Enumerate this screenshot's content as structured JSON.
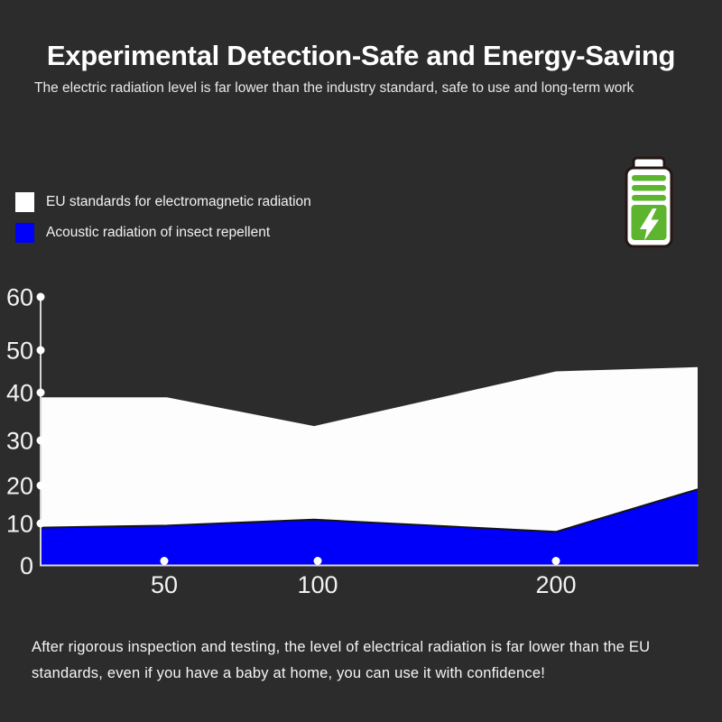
{
  "page": {
    "background": "#2c2c2c"
  },
  "header": {
    "title": "Experimental Detection-Safe and Energy-Saving",
    "subtitle": "The electric radiation level is far lower than the industry standard, safe to use and long-term work"
  },
  "legend": {
    "items": [
      {
        "label": "EU standards for electromagnetic radiation",
        "color": "#ffffff"
      },
      {
        "label": "Acoustic radiation of insect repellent",
        "color": "#0000fa"
      }
    ]
  },
  "battery_icon": {
    "name": "battery-charging-icon",
    "green": "#5cb42f"
  },
  "chart_data": {
    "type": "area",
    "title": "",
    "xlabel": "",
    "ylabel": "",
    "x_tick_labels": [
      "50",
      "100",
      "200"
    ],
    "y_ticks": [
      0,
      10,
      20,
      30,
      40,
      50,
      60
    ],
    "ylim": [
      0,
      60
    ],
    "grid": false,
    "legend_position": "top-left above chart",
    "x_scale_note": "category-like spacing; series start at left edge of axis and end at right edge",
    "series_points_x": [
      "left-edge",
      "50",
      "100",
      "200",
      "right-edge"
    ],
    "series": [
      {
        "name": "EU standards for electromagnetic radiation",
        "color": "#fdfdfd",
        "values": [
          39,
          39,
          33,
          45,
          46
        ]
      },
      {
        "name": "Acoustic radiation of insect repellent",
        "color": "#0000fa",
        "values": [
          9,
          9.5,
          11,
          8,
          19
        ]
      }
    ],
    "axis_color": "#d6d6d6",
    "marker_color": "#ffffff",
    "insect_line_color": "#12121a"
  },
  "footer": {
    "lines": [
      "After rigorous inspection and testing, the level of electrical radiation is far lower than the EU",
      "standards, even if you have a baby at home, you can use it with confidence!"
    ]
  }
}
